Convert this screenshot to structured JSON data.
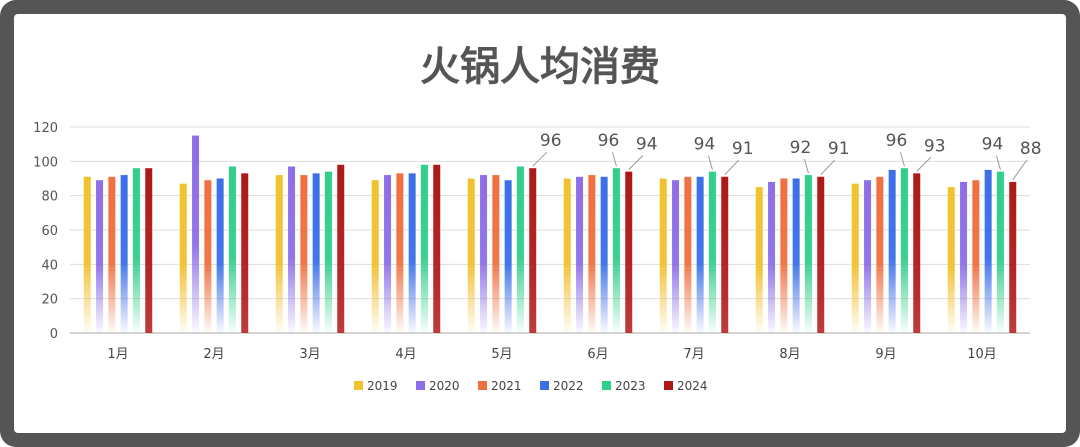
{
  "chart_data": {
    "type": "bar",
    "title": "火锅人均消费",
    "categories": [
      "1月",
      "2月",
      "3月",
      "4月",
      "5月",
      "6月",
      "7月",
      "8月",
      "9月",
      "10月"
    ],
    "ylim": [
      0,
      120
    ],
    "yticks": [
      0,
      20,
      40,
      60,
      80,
      100,
      120
    ],
    "grid": true,
    "legend_position": "bottom",
    "series": [
      {
        "name": "2019",
        "color": "#F2C12E",
        "values": [
          91,
          87,
          92,
          89,
          90,
          90,
          90,
          85,
          87,
          85
        ]
      },
      {
        "name": "2020",
        "color": "#8C6FE8",
        "values": [
          89,
          115,
          97,
          92,
          92,
          91,
          89,
          88,
          89,
          88
        ]
      },
      {
        "name": "2021",
        "color": "#F07040",
        "values": [
          91,
          89,
          92,
          93,
          92,
          92,
          91,
          90,
          91,
          89
        ]
      },
      {
        "name": "2022",
        "color": "#3B6FE8",
        "values": [
          92,
          90,
          93,
          93,
          89,
          91,
          91,
          90,
          95,
          95
        ]
      },
      {
        "name": "2023",
        "color": "#2ED08A",
        "values": [
          96,
          97,
          94,
          98,
          97,
          96,
          94,
          92,
          96,
          94
        ]
      },
      {
        "name": "2024",
        "color": "#B01818",
        "values": [
          96,
          93,
          98,
          98,
          96,
          94,
          91,
          91,
          93,
          88
        ]
      }
    ],
    "annotations": [
      {
        "text": "96",
        "category_index": 4,
        "series_index": 5
      },
      {
        "text": "96",
        "category_index": 5,
        "series_index": 4
      },
      {
        "text": "94",
        "category_index": 5,
        "series_index": 5
      },
      {
        "text": "94",
        "category_index": 6,
        "series_index": 4
      },
      {
        "text": "91",
        "category_index": 6,
        "series_index": 5
      },
      {
        "text": "92",
        "category_index": 7,
        "series_index": 4
      },
      {
        "text": "91",
        "category_index": 7,
        "series_index": 5
      },
      {
        "text": "96",
        "category_index": 8,
        "series_index": 4
      },
      {
        "text": "93",
        "category_index": 8,
        "series_index": 5
      },
      {
        "text": "94",
        "category_index": 9,
        "series_index": 4
      },
      {
        "text": "88",
        "category_index": 9,
        "series_index": 5
      }
    ]
  }
}
